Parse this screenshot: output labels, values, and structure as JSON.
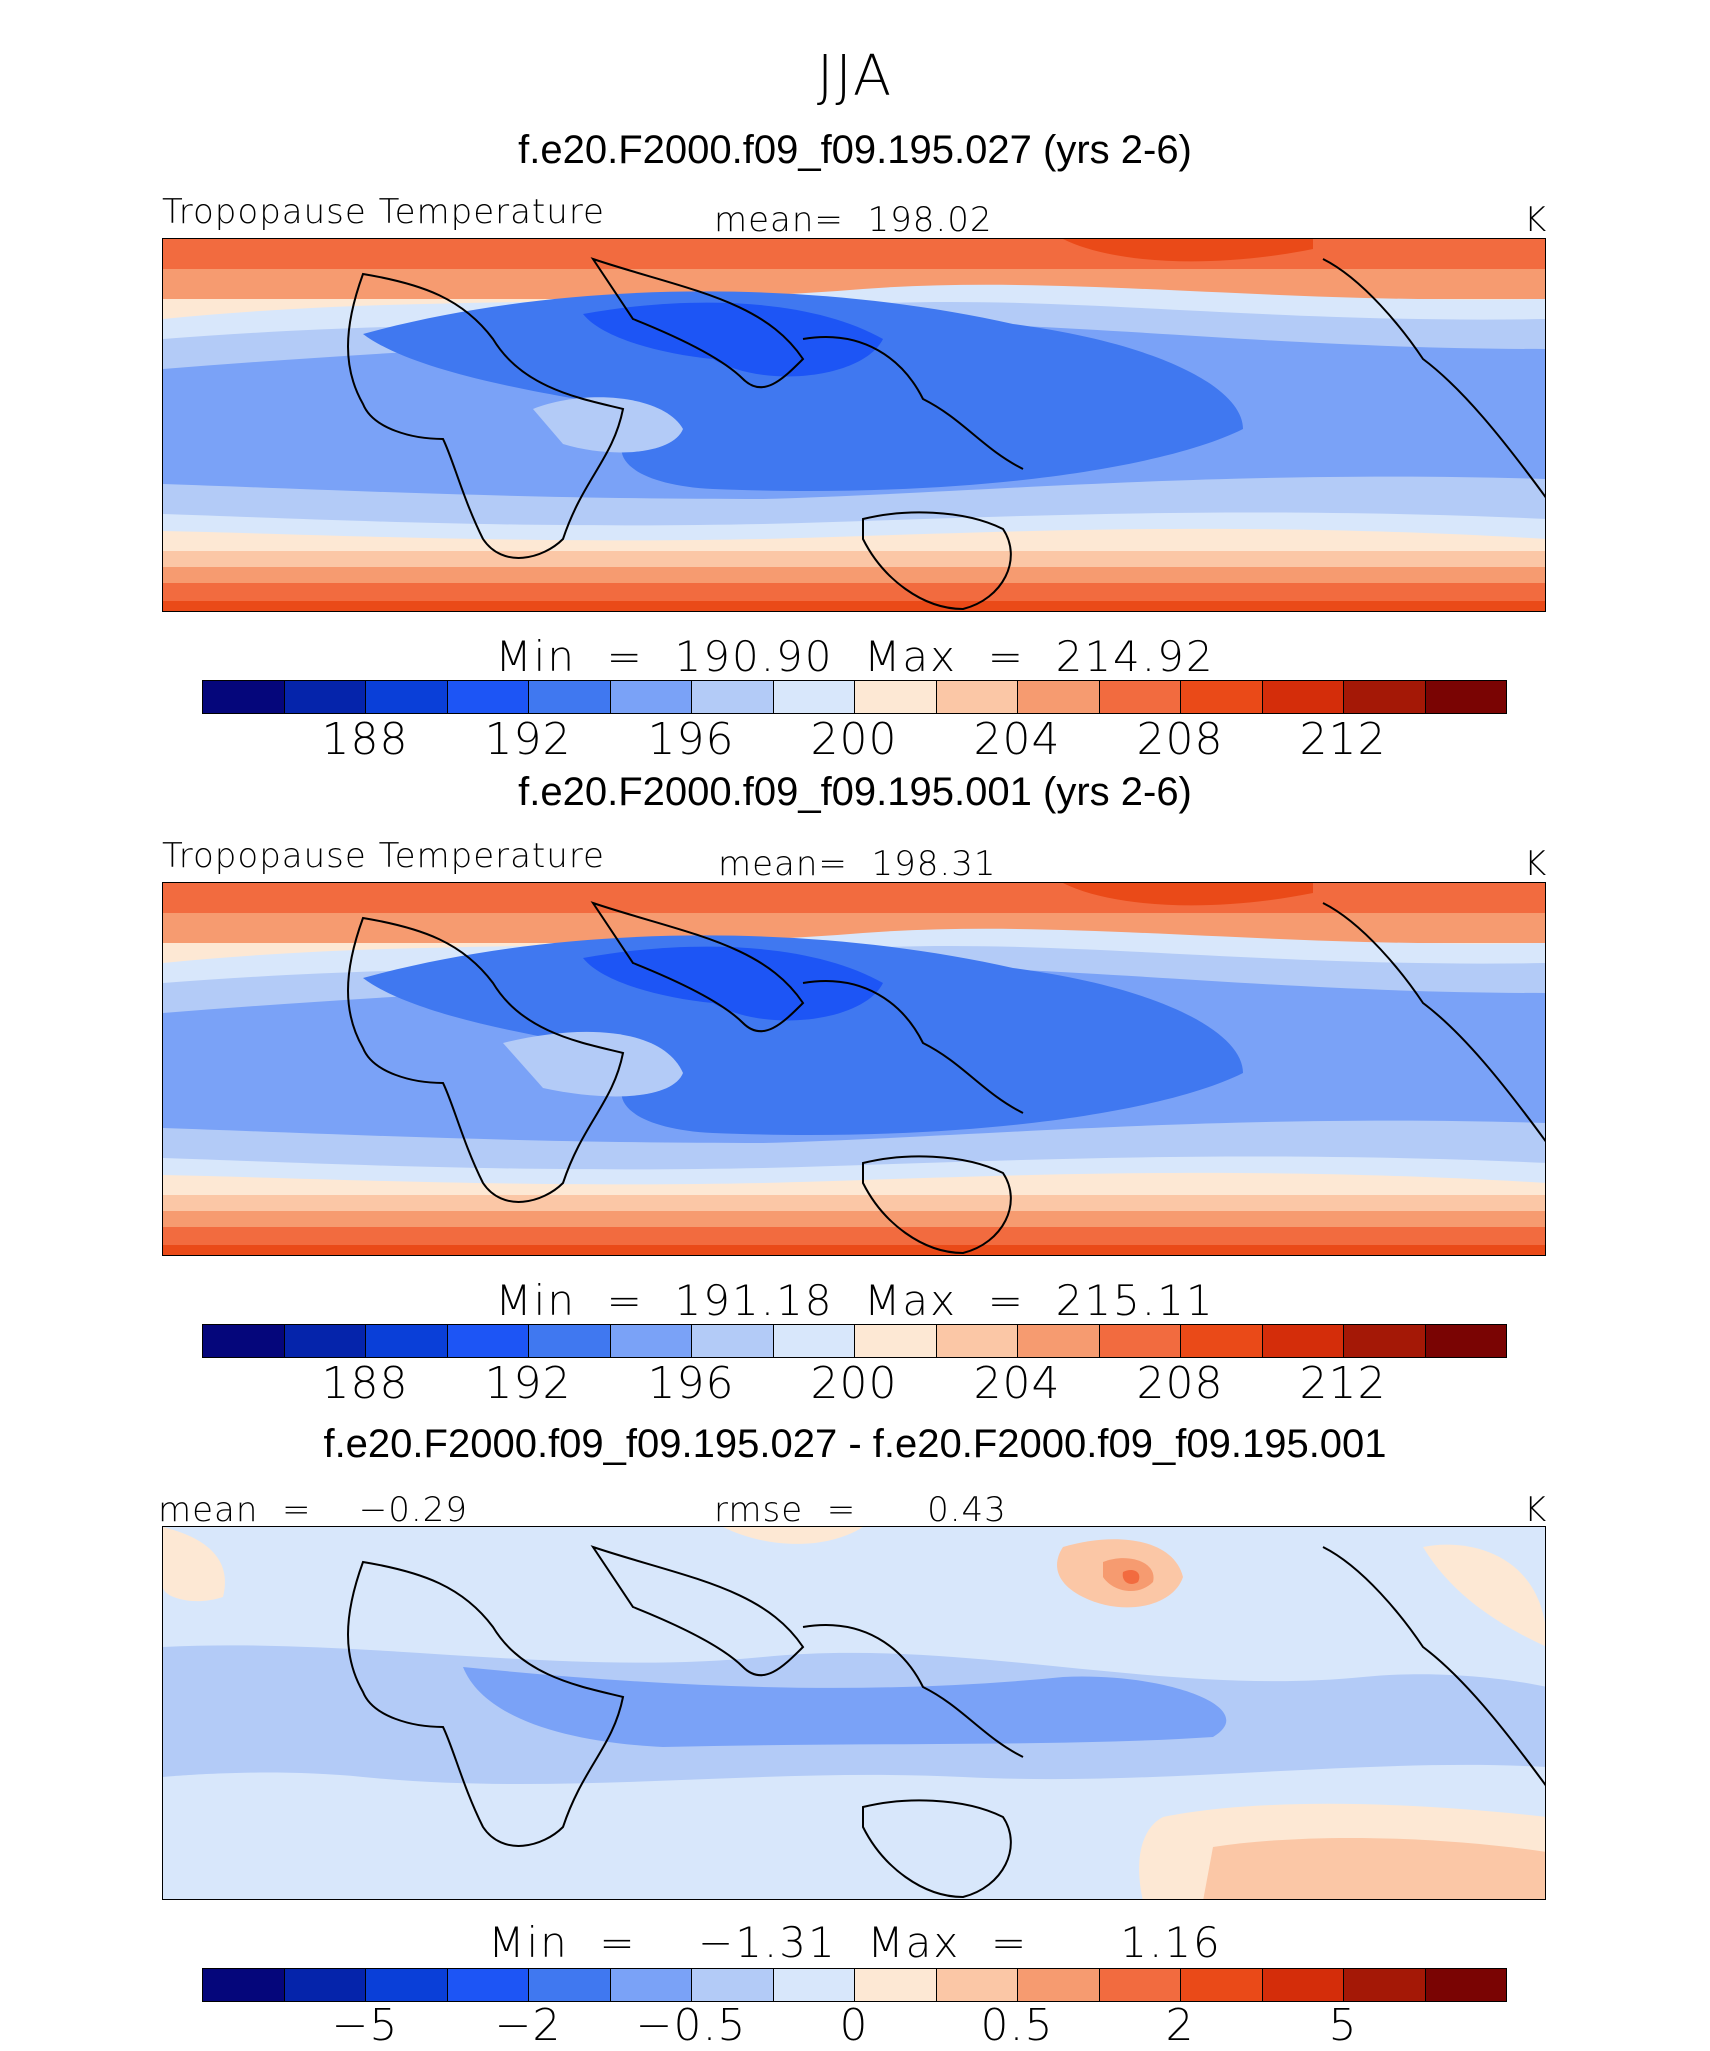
{
  "figure": {
    "title": "JJA",
    "units": "K"
  },
  "colors": {
    "palette": [
      "#05067b",
      "#0524ab",
      "#0a3fd8",
      "#1d55f5",
      "#4078f0",
      "#7aa2f7",
      "#b3cbf7",
      "#d8e7fb",
      "#fde8d4",
      "#fbc7a6",
      "#f69b70",
      "#f26b3f",
      "#ea4a18",
      "#d42d0a",
      "#a41806",
      "#7a0403"
    ],
    "coastline": "#000000"
  },
  "panels": [
    {
      "case_title": "f.e20.F2000.f09_f09.195.027 (yrs 2-6)",
      "variable_label": "Tropopause Temperature",
      "stat_label": "mean=  198.02",
      "units": "K",
      "minmax": "Min  =  190.90  Max  =  214.92",
      "colorbar_ticks": [
        "188",
        "192",
        "196",
        "200",
        "204",
        "208",
        "212"
      ]
    },
    {
      "case_title": "f.e20.F2000.f09_f09.195.001 (yrs 2-6)",
      "variable_label": "Tropopause Temperature",
      "stat_label": "mean=  198.31",
      "units": "K",
      "minmax": "Min  =  191.18  Max  =  215.11",
      "colorbar_ticks": [
        "188",
        "192",
        "196",
        "200",
        "204",
        "208",
        "212"
      ]
    },
    {
      "case_title": "f.e20.F2000.f09_f09.195.027 - f.e20.F2000.f09_f09.195.001",
      "left_label": "mean  =    −0.29",
      "stat_label": "rmse  =      0.43",
      "units": "K",
      "minmax": "Min  =    −1.31  Max  =      1.16",
      "colorbar_ticks": [
        "−5",
        "−2",
        "−0.5",
        "0",
        "0.5",
        "2",
        "5"
      ]
    }
  ]
}
